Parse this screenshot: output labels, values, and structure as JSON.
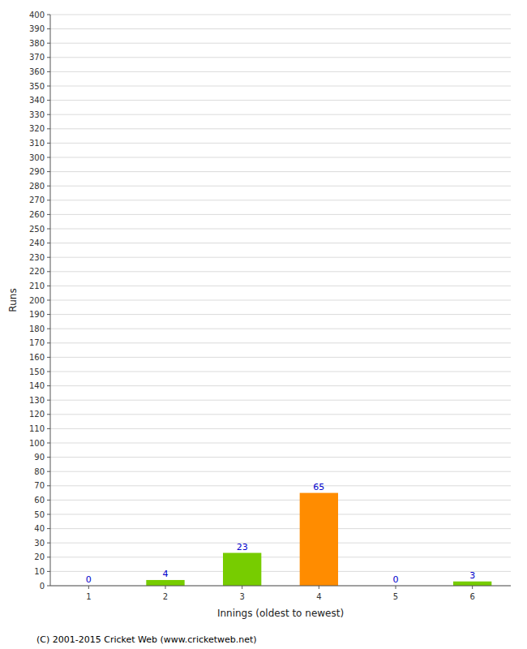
{
  "chart_data": {
    "type": "bar",
    "categories": [
      1,
      2,
      3,
      4,
      5,
      6
    ],
    "values": [
      0,
      4,
      23,
      65,
      0,
      3
    ],
    "colors": [
      "#77cc00",
      "#77cc00",
      "#77cc00",
      "#ff8c00",
      "#77cc00",
      "#77cc00"
    ],
    "xlabel": "Innings (oldest to newest)",
    "ylabel": "Runs",
    "ylim": [
      0,
      400
    ],
    "yticks": [
      0,
      10,
      20,
      30,
      40,
      50,
      60,
      70,
      80,
      90,
      100,
      110,
      120,
      130,
      140,
      150,
      160,
      170,
      180,
      190,
      200,
      210,
      220,
      230,
      240,
      250,
      260,
      270,
      280,
      290,
      300,
      310,
      320,
      330,
      340,
      350,
      360,
      370,
      380,
      390,
      400
    ],
    "grid": true,
    "data_labels": true,
    "annotations": [
      "(C) 2001-2015 Cricket Web (www.cricketweb.net)"
    ]
  }
}
